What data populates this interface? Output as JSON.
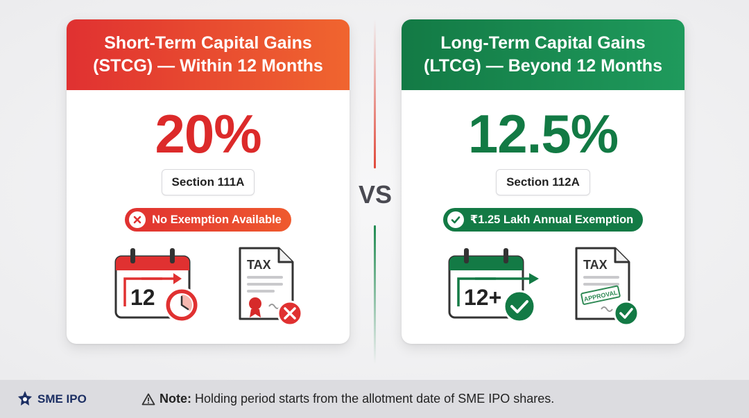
{
  "stcg": {
    "title_line1": "Short-Term Capital Gains",
    "title_line2": "(STCG) — Within 12 Months",
    "rate": "20%",
    "section": "Section 111A",
    "exemption": "No Exemption Available",
    "calendar_number": "12",
    "doc_label": "TAX",
    "accent_color": "#e03131"
  },
  "ltcg": {
    "title_line1": "Long-Term Capital Gains",
    "title_line2": "(LTCG) — Beyond 12 Months",
    "rate": "12.5%",
    "section": "Section 112A",
    "exemption": "₹1.25 Lakh Annual Exemption",
    "calendar_number": "12+",
    "doc_label": "TAX",
    "stamp_text": "APPROVAL",
    "accent_color": "#137a45"
  },
  "vs_label": "VS",
  "footer": {
    "brand": "SME IPO",
    "note_label": "Note:",
    "note_text": "Holding period starts from the allotment date of SME IPO shares."
  },
  "icons": {
    "stcg_exempt": "x-circle-icon",
    "ltcg_exempt": "check-circle-icon",
    "stcg_calendar": "calendar-clock-icon",
    "stcg_document": "tax-document-rejected-icon",
    "ltcg_calendar": "calendar-check-icon",
    "ltcg_document": "tax-document-approved-icon",
    "warning": "warning-icon",
    "logo": "sme-ipo-logo"
  }
}
